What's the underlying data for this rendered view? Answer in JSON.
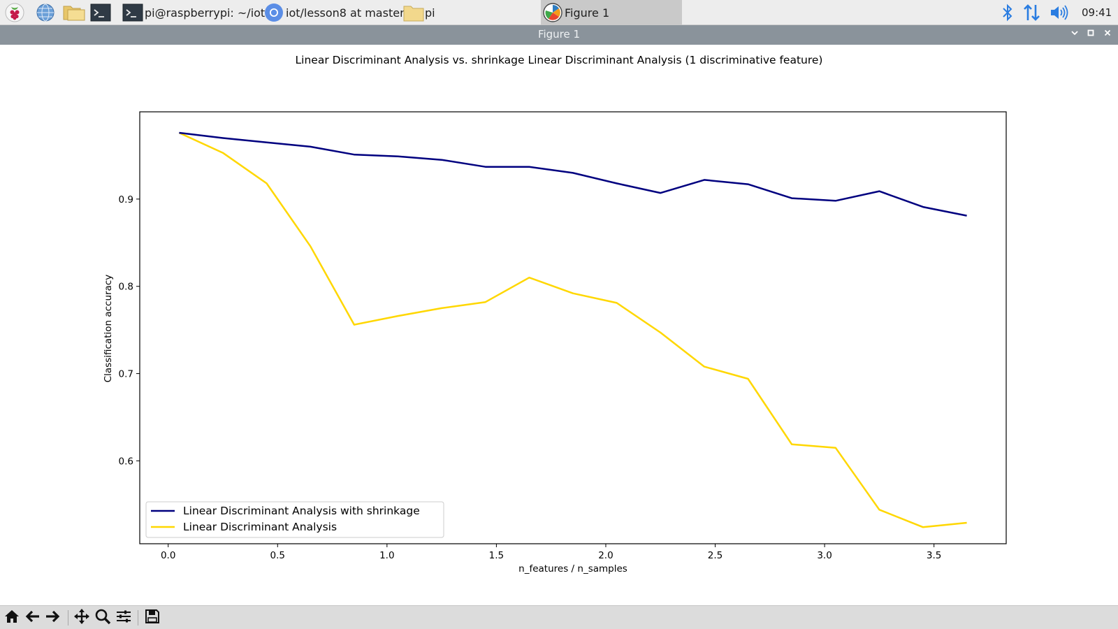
{
  "taskbar": {
    "items": [
      {
        "label": "pi@raspberrypi: ~/iot...",
        "icon": "terminal-icon"
      },
      {
        "label": "iot/lesson8 at master...",
        "icon": "browser-icon"
      },
      {
        "label": "pi",
        "icon": "folder-icon"
      },
      {
        "label": "Figure 1",
        "icon": "matplotlib-icon"
      }
    ],
    "launchers": [
      "raspberry-menu-icon",
      "globe-icon",
      "file-manager-icon",
      "terminal-icon"
    ],
    "tray": {
      "clock": "09:41",
      "icons": [
        "bluetooth-icon",
        "network-arrows-icon",
        "volume-icon"
      ]
    }
  },
  "window": {
    "title": "Figure 1",
    "controls": [
      "minimize-icon",
      "maximize-icon",
      "close-icon"
    ]
  },
  "chart_data": {
    "type": "line",
    "title": "Linear Discriminant Analysis vs. shrinkage Linear Discriminant Analysis (1 discriminative feature)",
    "xlabel": "n_features / n_samples",
    "ylabel": "Classification accuracy",
    "xlim": [
      -0.13,
      3.83
    ],
    "ylim": [
      0.505,
      1.0
    ],
    "xticks": [
      0.0,
      0.5,
      1.0,
      1.5,
      2.0,
      2.5,
      3.0,
      3.5
    ],
    "xtick_labels": [
      "0.0",
      "0.5",
      "1.0",
      "1.5",
      "2.0",
      "2.5",
      "3.0",
      "3.5"
    ],
    "yticks": [
      0.6,
      0.7,
      0.8,
      0.9
    ],
    "ytick_labels": [
      "0.6",
      "0.7",
      "0.8",
      "0.9"
    ],
    "grid": false,
    "legend": "lower-left",
    "x": [
      0.05,
      0.25,
      0.45,
      0.65,
      0.85,
      1.05,
      1.25,
      1.45,
      1.65,
      1.85,
      2.05,
      2.25,
      2.45,
      2.65,
      2.85,
      3.05,
      3.25,
      3.45,
      3.65
    ],
    "series": [
      {
        "name": "Linear Discriminant Analysis with shrinkage",
        "color": "#00007f",
        "values": [
          0.976,
          0.97,
          0.965,
          0.96,
          0.951,
          0.949,
          0.945,
          0.937,
          0.937,
          0.93,
          0.918,
          0.907,
          0.922,
          0.917,
          0.901,
          0.898,
          0.909,
          0.891,
          0.881
        ]
      },
      {
        "name": "Linear Discriminant Analysis",
        "color": "#ffd700",
        "values": [
          0.976,
          0.953,
          0.918,
          0.846,
          0.756,
          0.766,
          0.775,
          0.782,
          0.81,
          0.792,
          0.781,
          0.747,
          0.708,
          0.694,
          0.619,
          0.615,
          0.544,
          0.524,
          0.529
        ]
      }
    ]
  },
  "toolbar": {
    "tools": [
      "home-icon",
      "back-icon",
      "forward-icon",
      "pan-icon",
      "zoom-icon",
      "configure-subplots-icon",
      "save-icon"
    ]
  }
}
